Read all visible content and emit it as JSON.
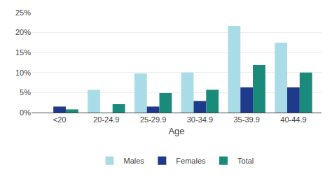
{
  "chart_data": {
    "type": "bar",
    "categories": [
      "<20",
      "20-24.9",
      "25-29.9",
      "30-34.9",
      "35-39.9",
      "40-44.9"
    ],
    "series": [
      {
        "name": "Males",
        "color": "#aadce8",
        "values": [
          0.0,
          5.7,
          9.8,
          10.0,
          21.7,
          17.5
        ]
      },
      {
        "name": "Females",
        "color": "#1e3a8a",
        "values": [
          1.5,
          0.0,
          1.5,
          2.9,
          6.3,
          6.3
        ]
      },
      {
        "name": "Total",
        "color": "#1a8a7a",
        "values": [
          0.8,
          2.1,
          4.9,
          5.7,
          11.9,
          10.0
        ]
      }
    ],
    "xlabel": "Age",
    "ylim": [
      0,
      25
    ],
    "yticks": [
      {
        "value": 0,
        "label": "0%"
      },
      {
        "value": 5,
        "label": "5%"
      },
      {
        "value": 10,
        "label": "10%"
      },
      {
        "value": 15,
        "label": "15%"
      },
      {
        "value": 20,
        "label": "20%"
      },
      {
        "value": 25,
        "label": "25%"
      }
    ],
    "grid": true,
    "legend": "bottom"
  }
}
